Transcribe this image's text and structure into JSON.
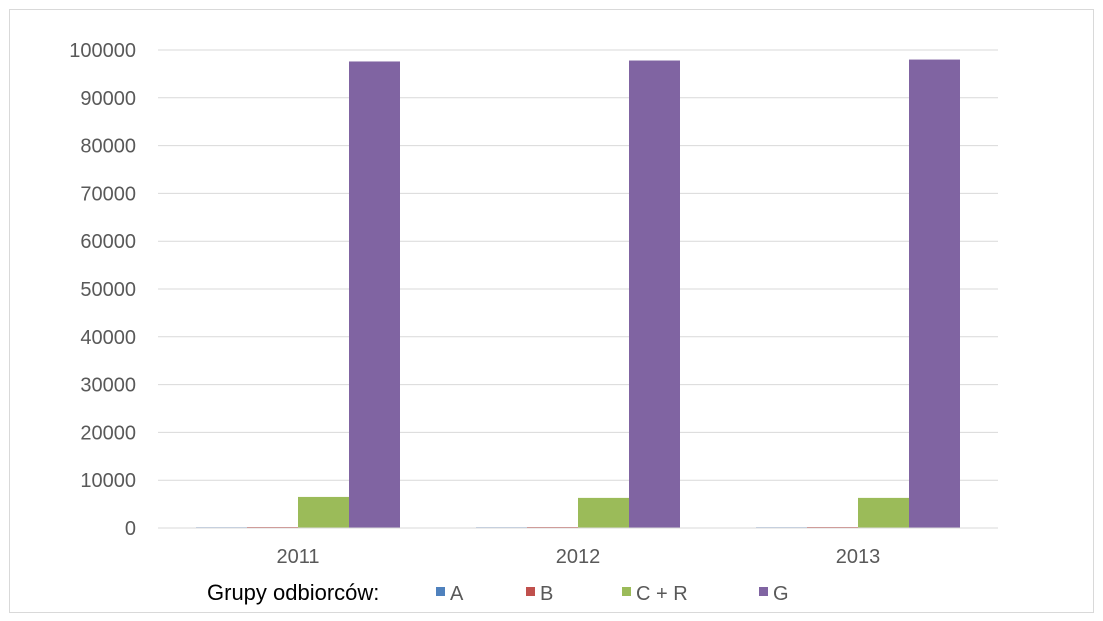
{
  "chart_data": {
    "type": "bar",
    "categories": [
      "2011",
      "2012",
      "2013"
    ],
    "series": [
      {
        "name": "A",
        "values": [
          150,
          150,
          150
        ],
        "color": "#4f81bd"
      },
      {
        "name": "B",
        "values": [
          200,
          200,
          200
        ],
        "color": "#c0504d"
      },
      {
        "name": "C + R",
        "values": [
          6500,
          6300,
          6300
        ],
        "color": "#9bbb59"
      },
      {
        "name": "G",
        "values": [
          97600,
          97800,
          98000
        ],
        "color": "#8064a2"
      }
    ],
    "ylim": [
      0,
      100000
    ],
    "yticks": [
      0,
      10000,
      20000,
      30000,
      40000,
      50000,
      60000,
      70000,
      80000,
      90000,
      100000
    ],
    "grid": true,
    "legend": {
      "title": "Grupy odbiorców:",
      "position": "bottom"
    },
    "title": "",
    "xlabel": "",
    "ylabel": ""
  }
}
